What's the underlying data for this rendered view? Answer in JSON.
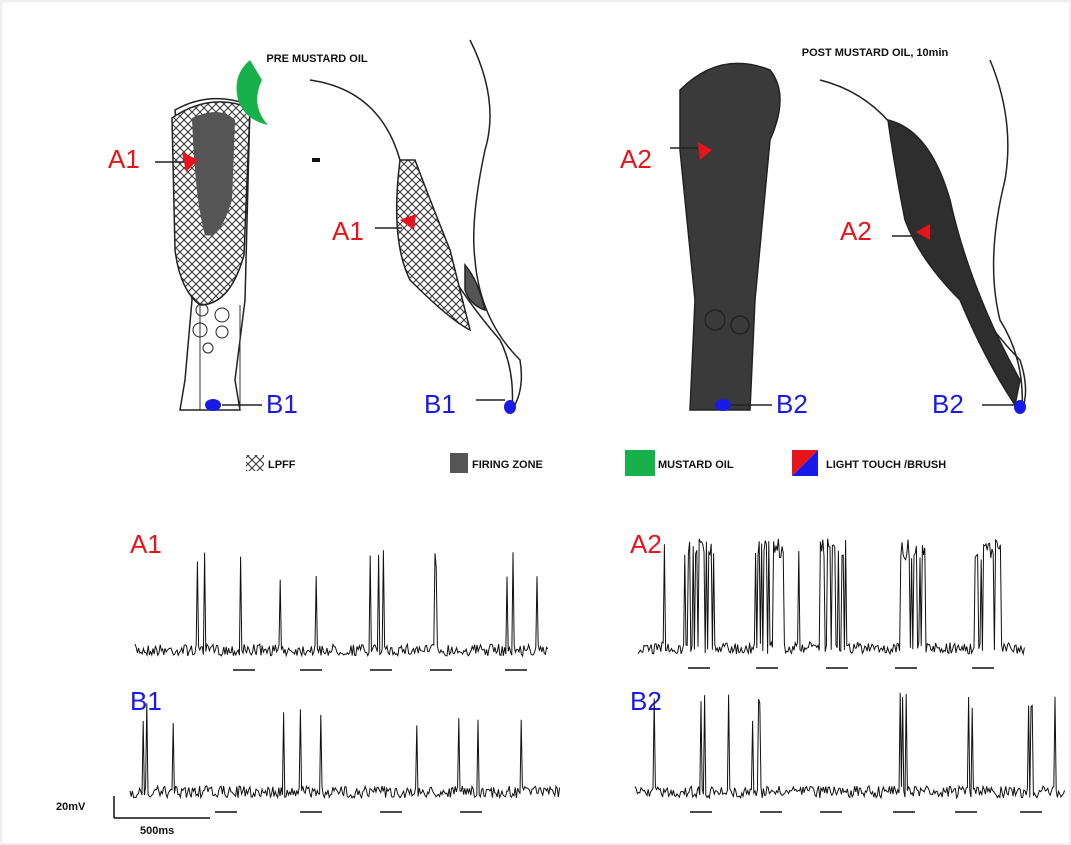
{
  "panels": [
    {
      "title": "PRE MUSTARD OIL",
      "labels": [
        "A1",
        "A1",
        "B1",
        "B1"
      ]
    },
    {
      "title": "POST MUSTARD OIL, 10min",
      "labels": [
        "A2",
        "A2",
        "B2",
        "B2"
      ]
    }
  ],
  "legend": [
    "LPFF",
    "FIRING ZONE",
    "MUSTARD OIL",
    "LIGHT TOUCH /BRUSH"
  ],
  "traces": [
    "A1",
    "B1",
    "A2",
    "B2"
  ],
  "scale_bar": {
    "voltage": "20mV",
    "time": "500ms"
  }
}
